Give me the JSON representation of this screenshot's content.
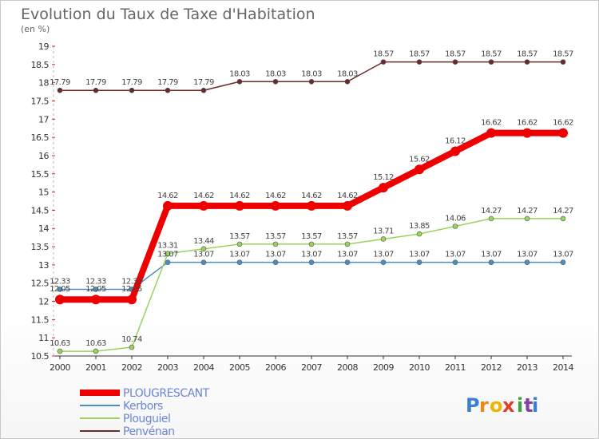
{
  "chart_data": {
    "type": "line",
    "title": "Evolution du Taux de Taxe d'Habitation",
    "subtitle": "(en %)",
    "ylim": [
      10.5,
      19
    ],
    "yticks": [
      10.5,
      11,
      11.5,
      12,
      12.5,
      13,
      13.5,
      14,
      14.5,
      15,
      15.5,
      16,
      16.5,
      17,
      17.5,
      18,
      18.5,
      19
    ],
    "ytick_labels": [
      "10.5",
      "11",
      "11.5",
      "12",
      "12.5",
      "13",
      "13.5",
      "14",
      "14.5",
      "15",
      "15.5",
      "16",
      "16.5",
      "17",
      "17.5",
      "18",
      "18.5",
      "19"
    ],
    "x": [
      "2000",
      "2001",
      "2002",
      "2003",
      "2004",
      "2005",
      "2006",
      "2007",
      "2008",
      "2009",
      "2010",
      "2011",
      "2012",
      "2013",
      "2014"
    ],
    "grid": false,
    "legend_position": "bottom-left",
    "series": [
      {
        "name": "Penvénan",
        "color": "#6b2a2a",
        "width": 1.5,
        "values": [
          17.79,
          17.79,
          17.79,
          17.79,
          17.79,
          18.03,
          18.03,
          18.03,
          18.03,
          18.57,
          18.57,
          18.57,
          18.57,
          18.57,
          18.57
        ],
        "labels": [
          "17.79",
          "17.79",
          "17.79",
          "17.79",
          "17.79",
          "18.03",
          "18.03",
          "18.03",
          "18.03",
          "18.57",
          "18.57",
          "18.57",
          "18.57",
          "18.57",
          "18.57"
        ]
      },
      {
        "name": "Kerbors",
        "color": "#4a8ec2",
        "width": 1.5,
        "values": [
          12.33,
          12.33,
          12.33,
          13.07,
          13.07,
          13.07,
          13.07,
          13.07,
          13.07,
          13.07,
          13.07,
          13.07,
          13.07,
          13.07,
          13.07
        ],
        "labels": [
          "12.33",
          "12.33",
          "12.33",
          "13.07",
          "13.07",
          "13.07",
          "13.07",
          "13.07",
          "13.07",
          "13.07",
          "13.07",
          "13.07",
          "13.07",
          "13.07",
          "13.07"
        ]
      },
      {
        "name": "Plouguiel",
        "color": "#9ad35a",
        "width": 1.5,
        "values": [
          10.63,
          10.63,
          10.74,
          13.31,
          13.44,
          13.57,
          13.57,
          13.57,
          13.57,
          13.71,
          13.85,
          14.06,
          14.27,
          14.27,
          14.27
        ],
        "labels": [
          "10.63",
          "10.63",
          "10.74",
          "13.31",
          "13.44",
          "13.57",
          "13.57",
          "13.57",
          "13.57",
          "13.71",
          "13.85",
          "14.06",
          "14.27",
          "14.27",
          "14.27"
        ]
      },
      {
        "name": "PLOUGRESCANT",
        "color": "#ee0000",
        "width": 8,
        "values": [
          12.05,
          12.05,
          12.05,
          14.62,
          14.62,
          14.62,
          14.62,
          14.62,
          14.62,
          15.12,
          15.62,
          16.12,
          16.62,
          16.62,
          16.62
        ],
        "labels": [
          "12.05",
          "12.05",
          "12.05",
          "14.62",
          "14.62",
          "14.62",
          "14.62",
          "14.62",
          "14.62",
          "15.12",
          "15.62",
          "16.12",
          "16.62",
          "16.62",
          "16.62"
        ]
      }
    ],
    "legend": [
      "PLOUGRESCANT",
      "Kerbors",
      "Plouguiel",
      "Penvénan"
    ]
  },
  "brand": {
    "text": "Proxiti",
    "letters": [
      "P",
      "r",
      "o",
      "x",
      "i",
      "t",
      "i"
    ],
    "colors": [
      "#3a7fd0",
      "#e88a1a",
      "#f0b400",
      "#e33d2b",
      "#3aa63a",
      "#8a3fa0",
      "#3a7fd0"
    ]
  }
}
